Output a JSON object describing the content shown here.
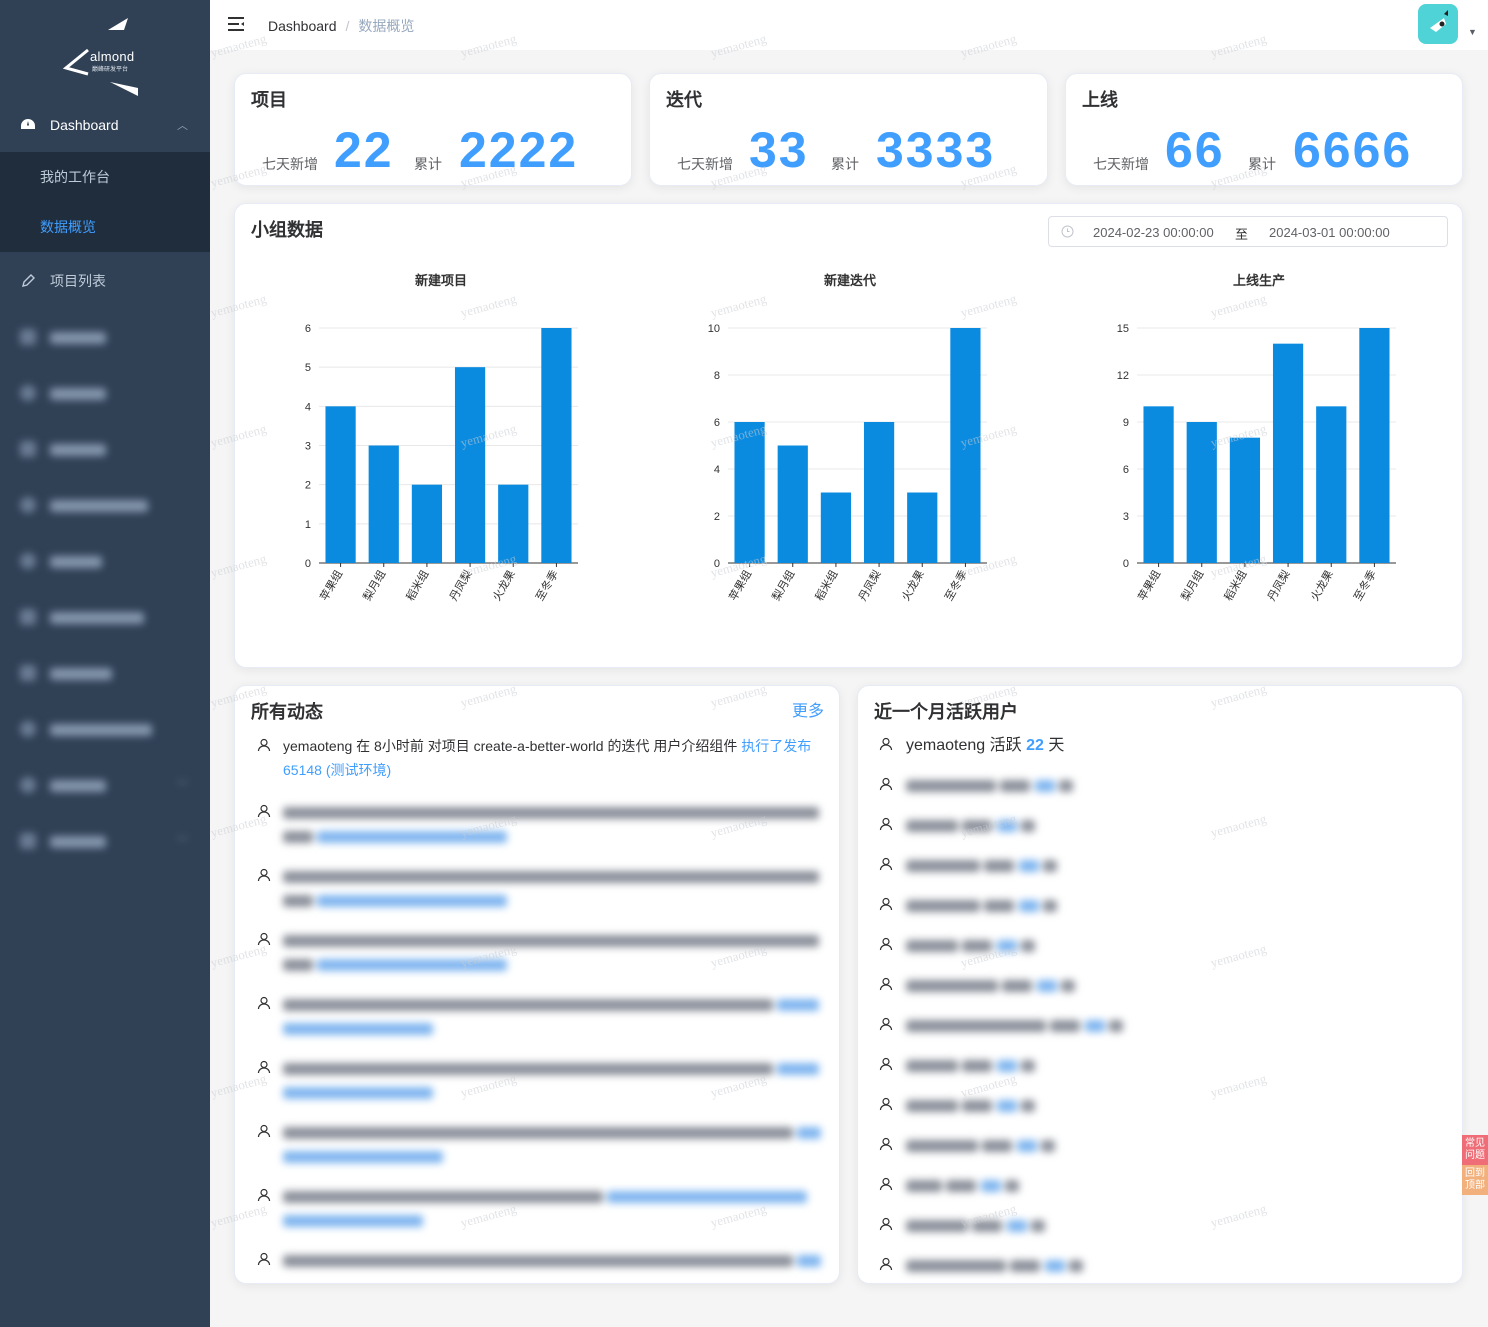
{
  "app": {
    "logo_word": "almond",
    "logo_sub": "巅峰研发平台"
  },
  "sidebar": {
    "dashboard_label": "Dashboard",
    "sub_items": [
      {
        "label": "我的工作台"
      },
      {
        "label": "数据概览"
      }
    ],
    "project_list_label": "项目列表",
    "hidden_items_count": 10
  },
  "header": {
    "crumb_root": "Dashboard",
    "crumb_sep": "/",
    "crumb_current": "数据概览"
  },
  "stats": [
    {
      "title": "项目",
      "new_label": "七天新增",
      "new_value": "22",
      "total_label": "累计",
      "total_value": "2222"
    },
    {
      "title": "迭代",
      "new_label": "七天新增",
      "new_value": "33",
      "total_label": "累计",
      "total_value": "3333"
    },
    {
      "title": "上线",
      "new_label": "七天新增",
      "new_value": "66",
      "total_label": "累计",
      "total_value": "6666"
    }
  ],
  "group": {
    "title": "小组数据",
    "date_start": "2024-02-23 00:00:00",
    "date_sep": "至",
    "date_end": "2024-03-01 00:00:00"
  },
  "chart_data": [
    {
      "type": "bar",
      "title": "新建项目",
      "categories": [
        "苹果组",
        "梨月组",
        "稻米组",
        "丹凤梨",
        "火龙果",
        "至冬季"
      ],
      "values": [
        4,
        3,
        2,
        5,
        2,
        6
      ],
      "ylim": [
        0,
        6
      ],
      "yticks": [
        0,
        1,
        2,
        3,
        4,
        5,
        6
      ],
      "color": "#0b8be0"
    },
    {
      "type": "bar",
      "title": "新建迭代",
      "categories": [
        "苹果组",
        "梨月组",
        "稻米组",
        "丹凤梨",
        "火龙果",
        "至冬季"
      ],
      "values": [
        6,
        5,
        3,
        6,
        3,
        10
      ],
      "ylim": [
        0,
        10
      ],
      "yticks": [
        0,
        2,
        4,
        6,
        8,
        10
      ],
      "color": "#0b8be0"
    },
    {
      "type": "bar",
      "title": "上线生产",
      "categories": [
        "苹果组",
        "梨月组",
        "稻米组",
        "丹凤梨",
        "火龙果",
        "至冬季"
      ],
      "values": [
        10,
        9,
        8,
        14,
        10,
        15
      ],
      "ylim": [
        0,
        15
      ],
      "yticks": [
        0,
        3,
        6,
        9,
        12,
        15
      ],
      "color": "#0b8be0"
    }
  ],
  "activity": {
    "title": "所有动态",
    "more_label": "更多",
    "first": {
      "prefix": "yemaoteng 在 8小时前 对项目 create-a-better-world 的迭代 用户介绍组件 ",
      "link": "执行了发布 65148 (测试环境)"
    }
  },
  "active_users": {
    "title": "近一个月活跃用户",
    "first": {
      "name": "yemaoteng",
      "verb": " 活跃 ",
      "days": "22",
      "unit": " 天"
    }
  },
  "float": {
    "help": "常见问题",
    "top": "回到顶部"
  },
  "watermark": "yemaoteng",
  "colors": {
    "sidebar_bg": "#304156",
    "accent": "#409eff",
    "bar": "#0b8be0",
    "avatar_bg": "#4fd3d7"
  }
}
